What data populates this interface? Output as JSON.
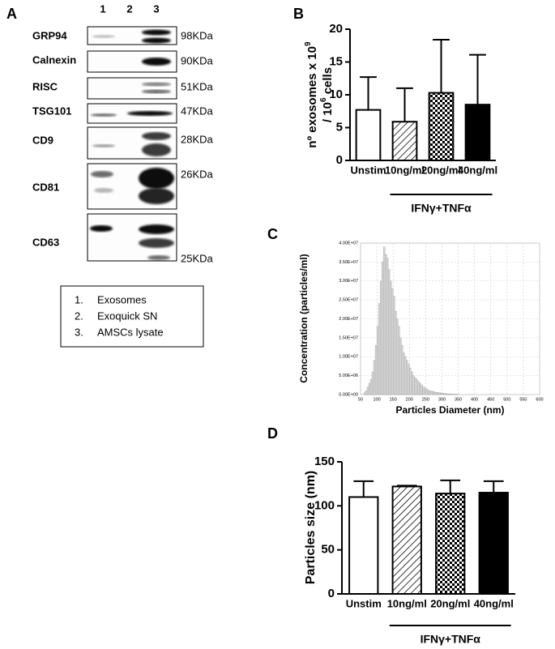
{
  "panel_a": {
    "letter": "A",
    "lanes": [
      "1",
      "2",
      "3"
    ],
    "blots": [
      {
        "protein": "GRP94",
        "size": "98KDa"
      },
      {
        "protein": "Calnexin",
        "size": "90KDa"
      },
      {
        "protein": "RISC",
        "size": "51KDa"
      },
      {
        "protein": "TSG101",
        "size": "47KDa"
      },
      {
        "protein": "CD9",
        "size": "28KDa"
      },
      {
        "protein": "CD81",
        "size": "26KDa"
      },
      {
        "protein": "CD63",
        "size": "25KDa"
      }
    ],
    "legend": [
      {
        "num": "1.",
        "text": "Exosomes"
      },
      {
        "num": "2.",
        "text": "Exoquick SN"
      },
      {
        "num": "3.",
        "text": "AMSCs lysate"
      }
    ]
  },
  "chart_data": [
    {
      "type": "bar",
      "letter": "B",
      "y_label": {
        "line1": "nº exosomes x 10",
        "line1_sup": "9",
        "line2": "/ 10",
        "line2_sup": "6",
        "line2_end": " cells"
      },
      "categories": [
        "Unstim",
        "10ng/ml",
        "20ng/ml",
        "40ng/ml"
      ],
      "values": [
        7.7,
        5.9,
        10.3,
        8.5
      ],
      "errors": [
        5.0,
        5.1,
        8.1,
        7.6
      ],
      "patterns": [
        "white",
        "hatch",
        "checker",
        "black"
      ],
      "group_label": "IFNγ+TNFα",
      "ylim": [
        0,
        20
      ],
      "yticks": [
        0,
        5,
        10,
        15,
        20
      ]
    },
    {
      "type": "histogram",
      "letter": "C",
      "y_label": "Concentration (particles/ml)",
      "x_label": "Particles Diameter (nm)",
      "bins": [
        60,
        65,
        70,
        75,
        80,
        85,
        90,
        95,
        100,
        105,
        110,
        115,
        120,
        125,
        130,
        135,
        140,
        145,
        150,
        155,
        160,
        165,
        170,
        175,
        180,
        185,
        190,
        195,
        200,
        205,
        210,
        215,
        220,
        225,
        230,
        235,
        240,
        245,
        250,
        255,
        260,
        265,
        270,
        275,
        280,
        285,
        290,
        295,
        300,
        305,
        310,
        315,
        320,
        325,
        330,
        335,
        340,
        345,
        350
      ],
      "counts": [
        500000,
        1000000,
        2000000,
        3000000,
        4000000,
        6000000,
        9000000,
        13000000,
        18000000,
        24000000,
        30000000,
        35000000,
        39000000,
        37000000,
        36000000,
        33000000,
        30000000,
        28000000,
        26000000,
        22000000,
        20000000,
        18000000,
        15000000,
        13000000,
        11000000,
        10000000,
        9000000,
        8000000,
        7000000,
        6000000,
        5000000,
        4500000,
        4000000,
        3500000,
        3000000,
        2500000,
        2000000,
        1800000,
        1500000,
        1200000,
        1000000,
        900000,
        800000,
        700000,
        600000,
        500000,
        500000,
        400000,
        400000,
        300000,
        300000,
        200000,
        200000,
        200000,
        100000,
        100000,
        100000,
        100000
      ],
      "color": "#d9d9d9",
      "grid": true,
      "xlim": [
        50,
        600
      ],
      "xticks": [
        50,
        100,
        150,
        200,
        250,
        300,
        350,
        400,
        450,
        500,
        550,
        600
      ],
      "ylim": [
        0,
        40000000
      ],
      "yticks": [
        {
          "value": 0,
          "label": "0.00E+00"
        },
        {
          "value": 5000000,
          "label": "5.00E+06"
        },
        {
          "value": 10000000,
          "label": "1.00E+07"
        },
        {
          "value": 15000000,
          "label": "1.50E+07"
        },
        {
          "value": 20000000,
          "label": "2.00E+07"
        },
        {
          "value": 25000000,
          "label": "2.50E+07"
        },
        {
          "value": 30000000,
          "label": "3.00E+07"
        },
        {
          "value": 35000000,
          "label": "3.50E+07"
        },
        {
          "value": 40000000,
          "label": "4.00E+07"
        }
      ]
    },
    {
      "type": "bar",
      "letter": "D",
      "y_label": "Particles size (nm)",
      "categories": [
        "Unstim",
        "10ng/ml",
        "20ng/ml",
        "40ng/ml"
      ],
      "values": [
        110,
        122,
        114,
        115
      ],
      "errors": [
        18,
        1,
        15,
        13
      ],
      "patterns": [
        "white",
        "hatch",
        "checker",
        "black"
      ],
      "group_label": "IFNγ+TNFα",
      "ylim": [
        0,
        150
      ],
      "yticks": [
        0,
        50,
        100,
        150
      ]
    }
  ]
}
